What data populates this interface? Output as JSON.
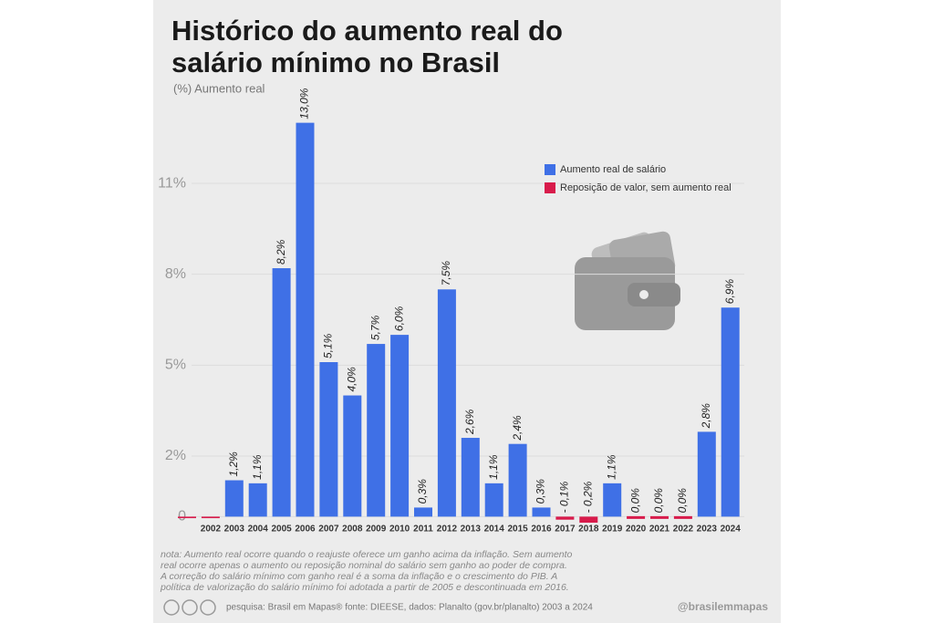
{
  "chart_data": {
    "type": "bar",
    "title_lines": [
      "Histórico do aumento real do",
      "salário mínimo no Brasil"
    ],
    "subtitle": "(%) Aumento real",
    "categories": [
      null,
      "2002",
      "2003",
      "2004",
      "2005",
      "2006",
      "2007",
      "2008",
      "2009",
      "2010",
      "2011",
      "2012",
      "2013",
      "2014",
      "2015",
      "2016",
      "2017",
      "2018",
      "2019",
      "2020",
      "2021",
      "2022",
      "2023",
      "2024"
    ],
    "series": [
      {
        "name": "Aumento real de salário",
        "color": "#3f70e6",
        "values": [
          null,
          null,
          1.2,
          1.1,
          8.2,
          13.0,
          5.1,
          4.0,
          5.7,
          6.0,
          0.3,
          7.5,
          2.6,
          1.1,
          2.4,
          0.3,
          null,
          null,
          1.1,
          null,
          null,
          null,
          2.8,
          6.9
        ],
        "value_labels": [
          null,
          null,
          "1,2%",
          "1,1%",
          "8,2%",
          "13,0%",
          "5,1%",
          "4,0%",
          "5,7%",
          "6,0%",
          "0,3%",
          "7,5%",
          "2,6%",
          "1,1%",
          "2,4%",
          "0,3%",
          null,
          null,
          "1,1%",
          null,
          null,
          null,
          "2,8%",
          "6,9%"
        ]
      },
      {
        "name": "Reposição de valor, sem aumento real",
        "color": "#d81b4b",
        "values": [
          -0.05,
          -0.05,
          null,
          null,
          null,
          null,
          null,
          null,
          null,
          null,
          null,
          null,
          null,
          null,
          null,
          null,
          -0.1,
          -0.2,
          null,
          0.0,
          0.0,
          0.0,
          null,
          null
        ],
        "value_labels": [
          null,
          null,
          null,
          null,
          null,
          null,
          null,
          null,
          null,
          null,
          null,
          null,
          null,
          null,
          null,
          null,
          "- 0,1%",
          "- 0,2%",
          null,
          "0,0%",
          "0,0%",
          "0,0%",
          null,
          null
        ]
      }
    ],
    "ylim": [
      -0.5,
      13.5
    ],
    "yticks": [
      0,
      {
        "value": 2,
        "label": "2%"
      },
      {
        "value": 5,
        "label": "5%"
      },
      {
        "value": 8,
        "label": "8%"
      },
      {
        "value": 11,
        "label": "11%"
      }
    ],
    "grid": true,
    "note_lines": [
      "nota: Aumento real ocorre quando o reajuste oferece um ganho acima da inflação. Sem aumento",
      "real ocorre apenas o aumento ou reposição nominal do salário sem ganho ao poder de compra.",
      "A correção do salário mínimo com ganho real é a soma da inflação e o crescimento do PIB. A",
      "política de valorização do salário mínimo foi adotada a partir de 2005 e descontinuada em 2016."
    ],
    "source": "pesquisa: Brasil em Mapas® fonte: DIEESE, dados: Planalto (gov.br/planalto) 2003 a 2024",
    "credit": "@brasilemmapas"
  }
}
